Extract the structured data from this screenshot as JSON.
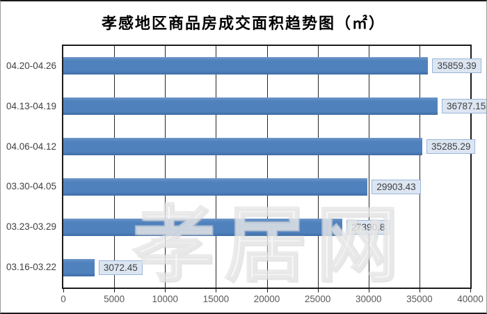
{
  "chart_data": {
    "type": "bar",
    "orientation": "horizontal",
    "title": "孝感地区商品房成交面积趋势图（㎡）",
    "categories": [
      "04.20-04.26",
      "04.13-04.19",
      "04.06-04.12",
      "03.30-04.05",
      "03.23-03.29",
      "03.16-03.22"
    ],
    "values": [
      35859.39,
      36787.15,
      35285.29,
      29903.43,
      27390.8,
      3072.45
    ],
    "value_labels": [
      "35859.39",
      "36787.15",
      "35285.29",
      "29903.43",
      "27390.8",
      "3072.45"
    ],
    "xlabel": "",
    "ylabel": "",
    "xlim": [
      0,
      40000
    ],
    "x_ticks": [
      0,
      5000,
      10000,
      15000,
      20000,
      25000,
      30000,
      35000,
      40000
    ],
    "grid": true,
    "legend": "none",
    "colors": {
      "bar": "#4f81bd",
      "bar_top": "#6d96c8",
      "bar_bottom": "#3e6da6",
      "label_box_bg": "#dce6f2",
      "label_box_border": "#9ab5d9",
      "gridline": "#262626"
    }
  },
  "watermark": {
    "text": "孝居网"
  }
}
